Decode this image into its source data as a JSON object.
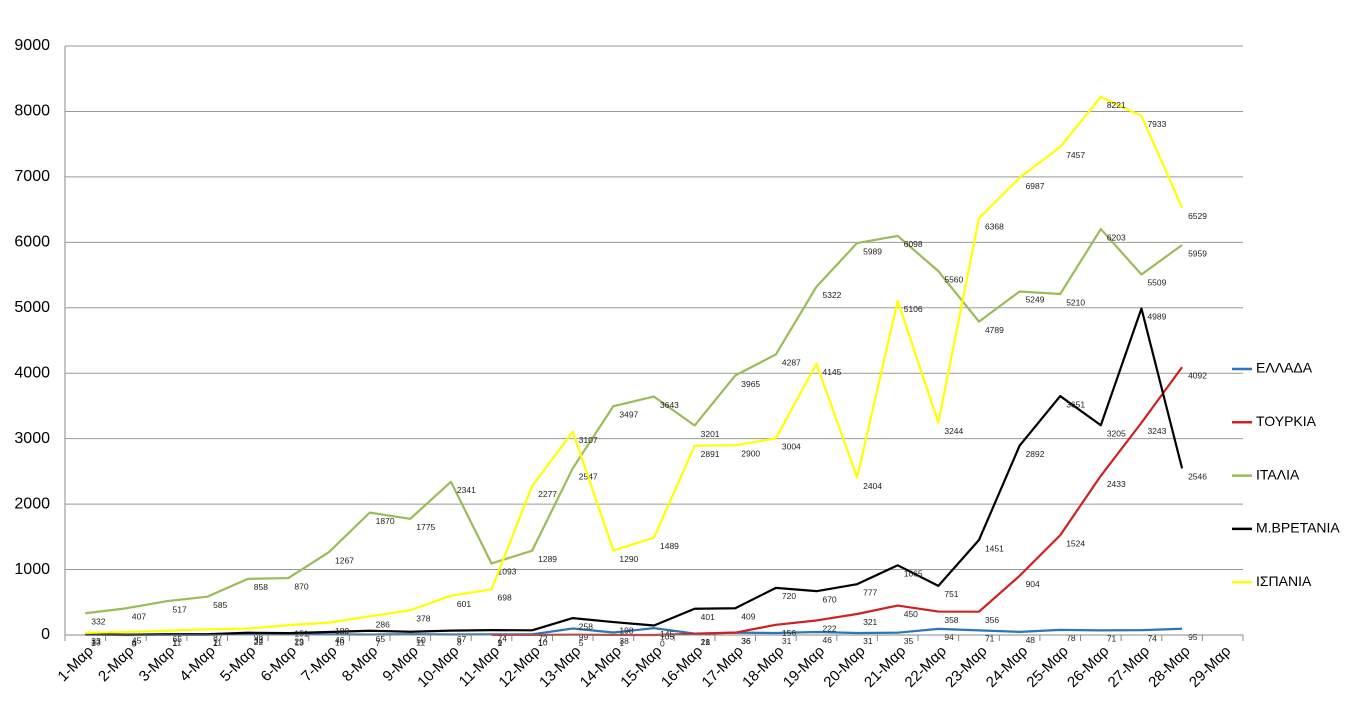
{
  "chart_data": {
    "type": "line",
    "categories": [
      "1-Μαρ",
      "2-Μαρ",
      "3-Μαρ",
      "4-Μαρ",
      "5-Μαρ",
      "6-Μαρ",
      "7-Μαρ",
      "8-Μαρ",
      "9-Μαρ",
      "10-Μαρ",
      "11-Μαρ",
      "12-Μαρ",
      "13-Μαρ",
      "14-Μαρ",
      "15-Μαρ",
      "16-Μαρ",
      "17-Μαρ",
      "18-Μαρ",
      "19-Μαρ",
      "20-Μαρ",
      "21-Μαρ",
      "22-Μαρ",
      "23-Μαρ",
      "24-Μαρ",
      "25-Μαρ",
      "26-Μαρ",
      "27-Μαρ",
      "28-Μαρ",
      "29-Μαρ"
    ],
    "series": [
      {
        "name": "ΕΛΛΑΔΑ",
        "color": "#2e75b6",
        "values": [
          3,
          0,
          1,
          2,
          22,
          13,
          10,
          7,
          11,
          8,
          9,
          10,
          99,
          38,
          105,
          21,
          36,
          31,
          46,
          31,
          35,
          94,
          71,
          48,
          78,
          71,
          74,
          95,
          null
        ]
      },
      {
        "name": "ΤΟΥΡΚΙΑ",
        "color": "#d02020",
        "values": [
          null,
          null,
          null,
          null,
          null,
          null,
          null,
          null,
          null,
          null,
          1,
          1,
          5,
          1,
          0,
          18,
          36,
          156,
          222,
          321,
          450,
          358,
          356,
          904,
          1524,
          2433,
          3243,
          4092,
          null
        ]
      },
      {
        "name": "ΙΤΑΛΙΑ",
        "color": "#9bbb59",
        "values": [
          332,
          407,
          517,
          585,
          858,
          870,
          1267,
          1870,
          1775,
          2341,
          1093,
          1289,
          2547,
          3497,
          3643,
          3201,
          3965,
          4287,
          5322,
          5989,
          6098,
          5560,
          4789,
          5249,
          5210,
          6203,
          5509,
          5959,
          null
        ]
      },
      {
        "name": "Μ.ΒΡΕΤΑΝΙΑ",
        "color": "#000000",
        "values": [
          13,
          4,
          11,
          11,
          34,
          29,
          46,
          65,
          50,
          67,
          74,
          72,
          258,
          198,
          145,
          401,
          409,
          720,
          670,
          777,
          1065,
          751,
          1451,
          2892,
          3651,
          3205,
          4989,
          2546,
          null
        ]
      },
      {
        "name": "ΙΣΠΑΝΙΑ",
        "color": "#ffff00",
        "values": [
          33,
          45,
          65,
          87,
          98,
          151,
          189,
          286,
          378,
          601,
          698,
          2277,
          3107,
          1290,
          1489,
          2891,
          2900,
          3004,
          4145,
          2404,
          5106,
          3244,
          6368,
          6987,
          7457,
          8221,
          7933,
          6529,
          null
        ]
      }
    ],
    "ylim": [
      0,
      9000
    ],
    "yticks": [
      0,
      1000,
      2000,
      3000,
      4000,
      5000,
      6000,
      7000,
      8000,
      9000
    ],
    "grid": true,
    "legend": "right"
  }
}
